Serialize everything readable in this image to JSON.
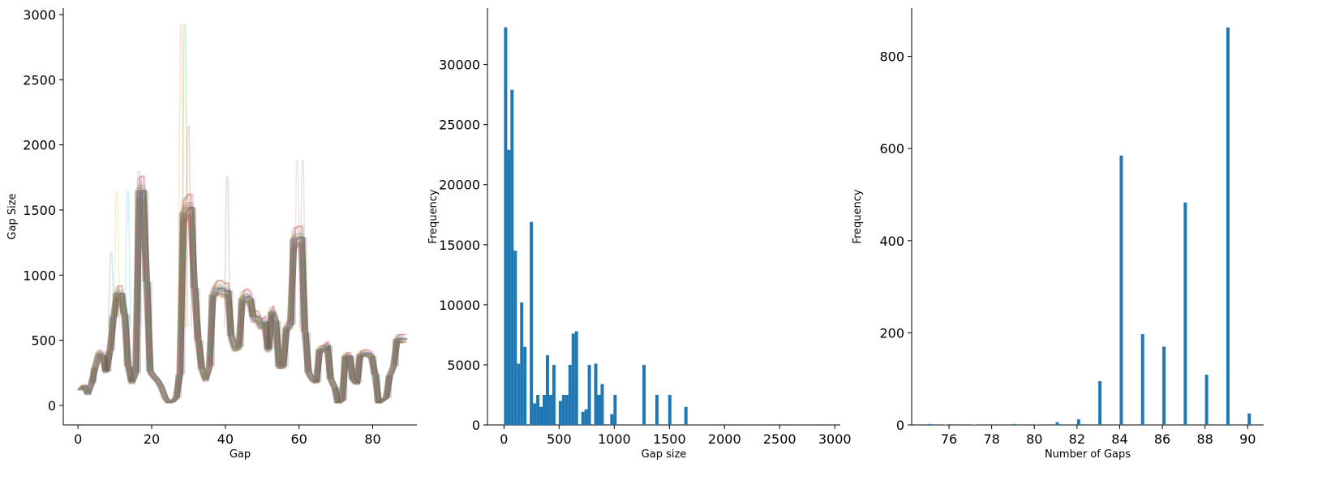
{
  "figure": {
    "colors": {
      "bar": "#1f77b4",
      "axis": "#000000",
      "line_palette": [
        "#1f77b4",
        "#ff7f0e",
        "#2ca02c",
        "#d62728",
        "#9467bd",
        "#8c564b",
        "#e377c2",
        "#7f7f7f",
        "#bcbd22",
        "#17becf"
      ],
      "line_final": "#7f7f7f"
    }
  },
  "chart_data": [
    {
      "type": "line",
      "xlabel": "Gap",
      "ylabel": "Gap Size",
      "xlim": [
        -4,
        92
      ],
      "ylim": [
        -150,
        3050
      ],
      "xticks": [
        0,
        20,
        40,
        60,
        80
      ],
      "yticks": [
        0,
        500,
        1000,
        1500,
        2000,
        2500,
        3000
      ],
      "grid": false,
      "legend": "none",
      "base_profile": [
        [
          0,
          120
        ],
        [
          1,
          150
        ],
        [
          2,
          90
        ],
        [
          3,
          170
        ],
        [
          4,
          290
        ],
        [
          5,
          400
        ],
        [
          6,
          380
        ],
        [
          7,
          260
        ],
        [
          8,
          420
        ],
        [
          9,
          680
        ],
        [
          10,
          860
        ],
        [
          11,
          860
        ],
        [
          12,
          700
        ],
        [
          13,
          300
        ],
        [
          14,
          180
        ],
        [
          15,
          250
        ],
        [
          16,
          1650
        ],
        [
          17,
          1650
        ],
        [
          18,
          950
        ],
        [
          19,
          260
        ],
        [
          20,
          220
        ],
        [
          21,
          190
        ],
        [
          22,
          140
        ],
        [
          23,
          60
        ],
        [
          24,
          20
        ],
        [
          25,
          30
        ],
        [
          26,
          60
        ],
        [
          27,
          240
        ],
        [
          28,
          1480
        ],
        [
          29,
          1520
        ],
        [
          30,
          1520
        ],
        [
          31,
          900
        ],
        [
          32,
          500
        ],
        [
          33,
          280
        ],
        [
          34,
          200
        ],
        [
          35,
          300
        ],
        [
          36,
          850
        ],
        [
          37,
          900
        ],
        [
          38,
          900
        ],
        [
          39,
          880
        ],
        [
          40,
          880
        ],
        [
          41,
          530
        ],
        [
          42,
          440
        ],
        [
          43,
          450
        ],
        [
          44,
          820
        ],
        [
          45,
          840
        ],
        [
          46,
          820
        ],
        [
          47,
          680
        ],
        [
          48,
          680
        ],
        [
          49,
          620
        ],
        [
          50,
          640
        ],
        [
          51,
          430
        ],
        [
          52,
          720
        ],
        [
          53,
          650
        ],
        [
          54,
          300
        ],
        [
          55,
          300
        ],
        [
          56,
          600
        ],
        [
          57,
          620
        ],
        [
          58,
          1280
        ],
        [
          59,
          1290
        ],
        [
          60,
          1290
        ],
        [
          61,
          560
        ],
        [
          62,
          250
        ],
        [
          63,
          200
        ],
        [
          64,
          180
        ],
        [
          65,
          430
        ],
        [
          66,
          430
        ],
        [
          67,
          460
        ],
        [
          68,
          200
        ],
        [
          69,
          140
        ],
        [
          70,
          20
        ],
        [
          71,
          40
        ],
        [
          72,
          380
        ],
        [
          73,
          380
        ],
        [
          74,
          200
        ],
        [
          75,
          170
        ],
        [
          76,
          390
        ],
        [
          77,
          400
        ],
        [
          78,
          400
        ],
        [
          79,
          380
        ],
        [
          80,
          240
        ],
        [
          81,
          20
        ],
        [
          82,
          40
        ],
        [
          83,
          60
        ],
        [
          84,
          230
        ],
        [
          85,
          300
        ],
        [
          86,
          510
        ],
        [
          87,
          510
        ],
        [
          88,
          510
        ]
      ],
      "series_count": 40,
      "max_shift": 1.6,
      "spikes": [
        {
          "x": 28.0,
          "y": 2920
        },
        {
          "x": 29.0,
          "y": 2920
        },
        {
          "x": 30.0,
          "y": 2140
        },
        {
          "x": 16.5,
          "y": 1800
        },
        {
          "x": 40.5,
          "y": 1750
        },
        {
          "x": 59.5,
          "y": 1880
        },
        {
          "x": 61.0,
          "y": 1880
        },
        {
          "x": 10.5,
          "y": 1640
        },
        {
          "x": 13.5,
          "y": 1640
        },
        {
          "x": 9.0,
          "y": 1170
        }
      ]
    },
    {
      "type": "bar",
      "xlabel": "Gap size",
      "ylabel": "Frequency",
      "xlim": [
        -150,
        3050
      ],
      "ylim": [
        0,
        34700
      ],
      "xticks": [
        0,
        500,
        1000,
        1500,
        2000,
        2500,
        3000
      ],
      "yticks": [
        0,
        5000,
        10000,
        15000,
        20000,
        25000,
        30000
      ],
      "bin_width": 29.2,
      "bins": [
        {
          "x": 0,
          "value": 33100
        },
        {
          "x": 29.2,
          "value": 22900
        },
        {
          "x": 58.4,
          "value": 27900
        },
        {
          "x": 87.6,
          "value": 14500
        },
        {
          "x": 116.8,
          "value": 5100
        },
        {
          "x": 146,
          "value": 10200
        },
        {
          "x": 175.2,
          "value": 6500
        },
        {
          "x": 233.6,
          "value": 16900
        },
        {
          "x": 262.8,
          "value": 1800
        },
        {
          "x": 292,
          "value": 2500
        },
        {
          "x": 321.2,
          "value": 1500
        },
        {
          "x": 350.4,
          "value": 2500
        },
        {
          "x": 379.6,
          "value": 5800
        },
        {
          "x": 408.8,
          "value": 2500
        },
        {
          "x": 438,
          "value": 5000
        },
        {
          "x": 496.4,
          "value": 2000
        },
        {
          "x": 525.6,
          "value": 2500
        },
        {
          "x": 554.8,
          "value": 2500
        },
        {
          "x": 584,
          "value": 5000
        },
        {
          "x": 613.2,
          "value": 7600
        },
        {
          "x": 642.4,
          "value": 7800
        },
        {
          "x": 700.8,
          "value": 1100
        },
        {
          "x": 730,
          "value": 1300
        },
        {
          "x": 759.2,
          "value": 5000
        },
        {
          "x": 817.6,
          "value": 5100
        },
        {
          "x": 846.8,
          "value": 2500
        },
        {
          "x": 876,
          "value": 3400
        },
        {
          "x": 963.6,
          "value": 900
        },
        {
          "x": 992.8,
          "value": 2500
        },
        {
          "x": 1255.6,
          "value": 5000
        },
        {
          "x": 1372.4,
          "value": 2500
        },
        {
          "x": 1489.2,
          "value": 2500
        },
        {
          "x": 1635.2,
          "value": 1500
        }
      ]
    },
    {
      "type": "bar",
      "xlabel": "Number of Gaps",
      "ylabel": "Frequency",
      "xlim": [
        74.25,
        90.75
      ],
      "ylim": [
        0,
        905
      ],
      "xticks": [
        76,
        78,
        80,
        82,
        84,
        86,
        88,
        90
      ],
      "yticks": [
        0,
        200,
        400,
        600,
        800
      ],
      "bin_width": 0.15,
      "bins": [
        {
          "x": 75,
          "value": 2
        },
        {
          "x": 75.75,
          "value": 1
        },
        {
          "x": 77.1,
          "value": 1
        },
        {
          "x": 79,
          "value": 2
        },
        {
          "x": 80.05,
          "value": 1
        },
        {
          "x": 81,
          "value": 6
        },
        {
          "x": 82,
          "value": 12
        },
        {
          "x": 83,
          "value": 95
        },
        {
          "x": 84,
          "value": 585
        },
        {
          "x": 85,
          "value": 197
        },
        {
          "x": 86,
          "value": 170
        },
        {
          "x": 87,
          "value": 483
        },
        {
          "x": 88,
          "value": 109
        },
        {
          "x": 89,
          "value": 863
        },
        {
          "x": 90,
          "value": 25
        }
      ]
    }
  ]
}
